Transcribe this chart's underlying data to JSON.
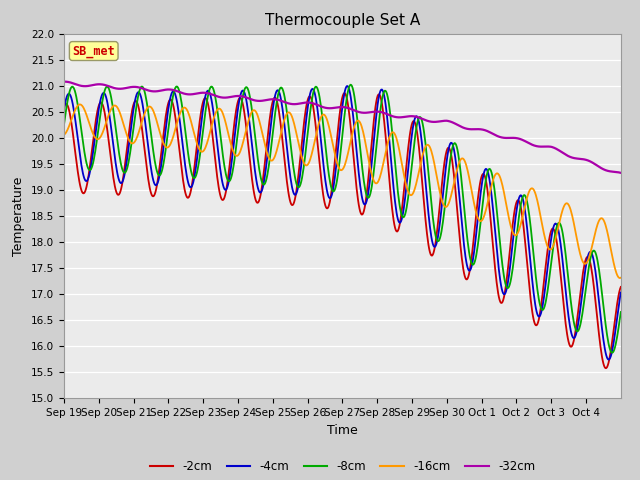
{
  "title": "Thermocouple Set A",
  "xlabel": "Time",
  "ylabel": "Temperature",
  "ylim": [
    15.0,
    22.0
  ],
  "yticks": [
    15.0,
    15.5,
    16.0,
    16.5,
    17.0,
    17.5,
    18.0,
    18.5,
    19.0,
    19.5,
    20.0,
    20.5,
    21.0,
    21.5,
    22.0
  ],
  "xtick_labels": [
    "Sep 19",
    "Sep 20",
    "Sep 21",
    "Sep 22",
    "Sep 23",
    "Sep 24",
    "Sep 25",
    "Sep 26",
    "Sep 27",
    "Sep 28",
    "Sep 29",
    "Sep 30",
    "Oct 1",
    "Oct 2",
    "Oct 3",
    "Oct 4"
  ],
  "series_colors": [
    "#cc0000",
    "#0000cc",
    "#00aa00",
    "#ff9900",
    "#aa00aa"
  ],
  "series_labels": [
    "-2cm",
    "-4cm",
    "-8cm",
    "-16cm",
    "-32cm"
  ],
  "plot_bg_color": "#ebebeb",
  "fig_bg_color": "#d0d0d0",
  "annotation_text": "SB_met",
  "annotation_color": "#cc0000",
  "annotation_bg": "#ffff99",
  "title_fontsize": 11,
  "axis_label_fontsize": 9,
  "tick_fontsize": 7.5,
  "legend_fontsize": 8.5
}
